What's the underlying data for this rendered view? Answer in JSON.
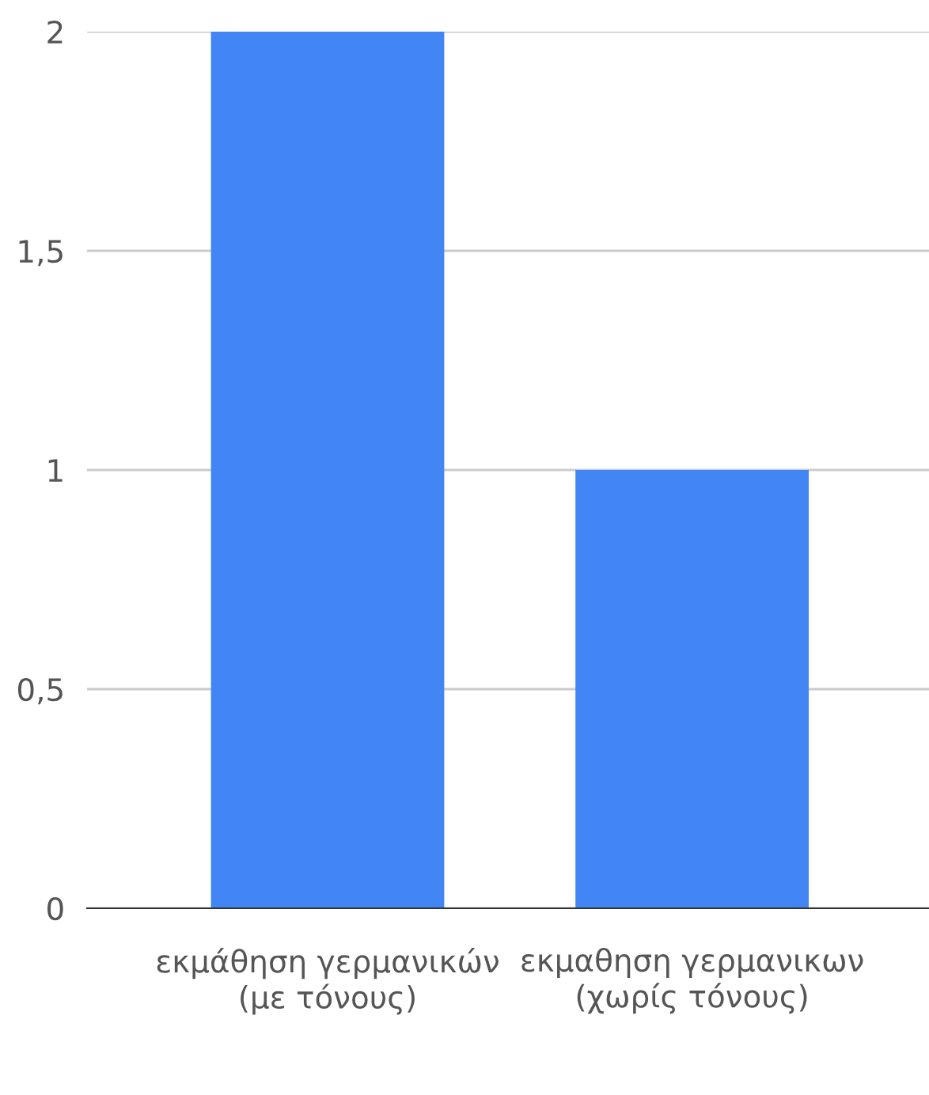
{
  "chart_data": {
    "type": "bar",
    "categories": [
      "εκμάθηση γερμανικών (με τόνους)",
      "εκμαθηση γερμανικων (χωρίς τόνους)"
    ],
    "values": [
      2,
      1
    ],
    "color": "#4285f4",
    "ylim": [
      0,
      2
    ],
    "yticks": [
      0,
      {
        "value": 0.5,
        "label": "0,5"
      },
      1,
      {
        "value": 1.5,
        "label": "1,5"
      },
      2
    ],
    "grid": "y"
  }
}
